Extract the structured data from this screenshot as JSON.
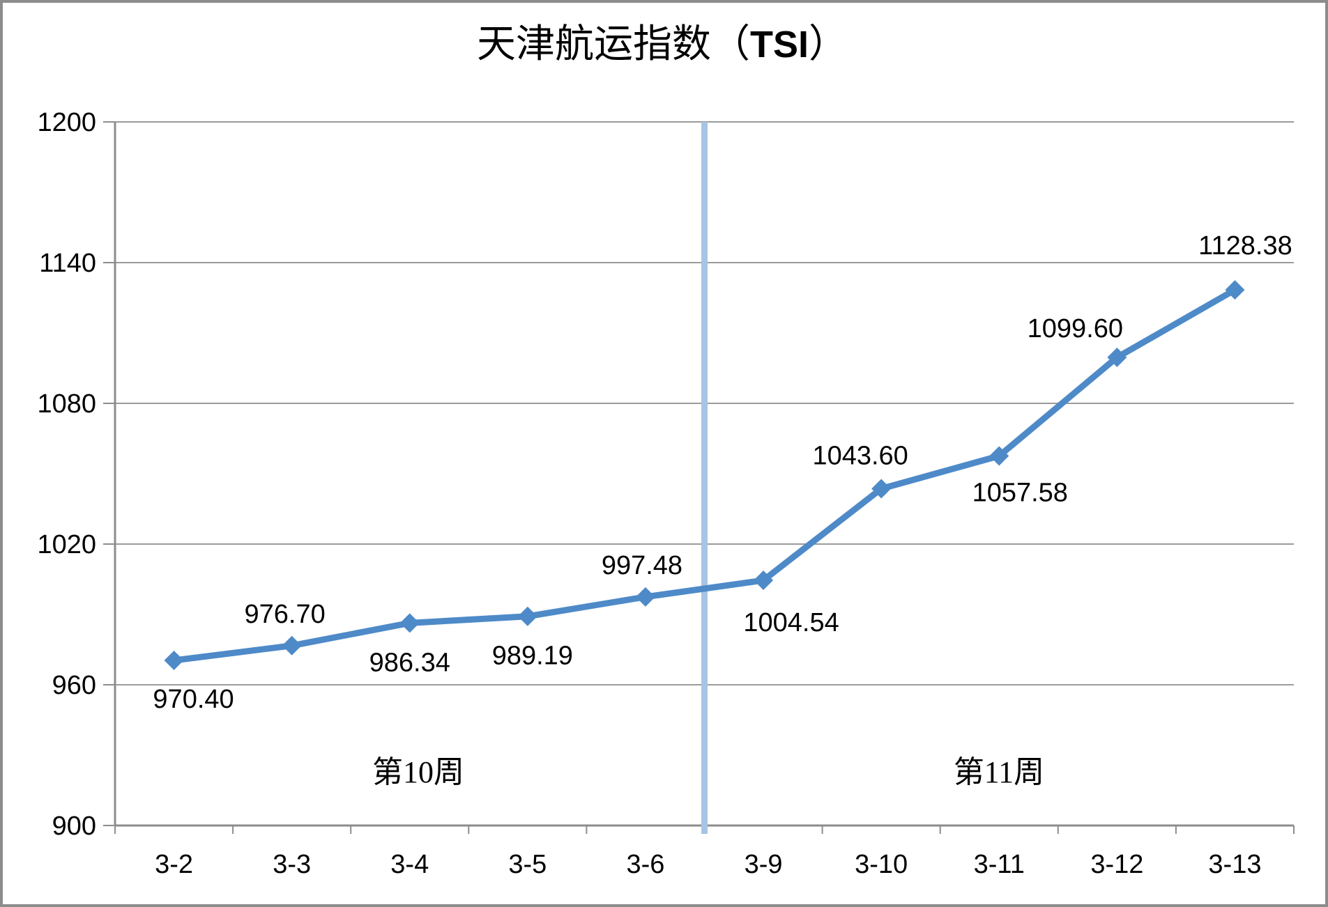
{
  "title": {
    "full": "天津航运指数（TSI）",
    "prefix": "天津航运指数（",
    "tsi": "TSI",
    "suffix": "）"
  },
  "chart_data": {
    "type": "line",
    "title": "天津航运指数（TSI）",
    "xlabel": "",
    "ylabel": "",
    "categories": [
      "3-2",
      "3-3",
      "3-4",
      "3-5",
      "3-6",
      "3-9",
      "3-10",
      "3-11",
      "3-12",
      "3-13"
    ],
    "series": [
      {
        "name": "TSI",
        "values": [
          970.4,
          976.7,
          986.34,
          989.19,
          997.48,
          1004.54,
          1043.6,
          1057.58,
          1099.6,
          1128.38
        ],
        "labels": [
          "970.40",
          "976.70",
          "986.34",
          "989.19",
          "997.48",
          "1004.54",
          "1043.60",
          "1057.58",
          "1099.60",
          "1128.38"
        ],
        "color": "#4E8AC8",
        "marker": "diamond"
      }
    ],
    "ylim": [
      900,
      1200
    ],
    "yticks": [
      900,
      960,
      1020,
      1080,
      1140,
      1200
    ],
    "ytick_labels": [
      "900",
      "960",
      "1020",
      "1080",
      "1140",
      "1200"
    ],
    "grid": true,
    "legend": "none",
    "divider": {
      "between": [
        "3-6",
        "3-9"
      ],
      "color": "#A7C4E4"
    },
    "annotations": [
      {
        "text": "第10周"
      },
      {
        "text": "第11周"
      }
    ]
  },
  "colors": {
    "background": "#FFFFFF",
    "border": "#8C8C8C",
    "axis": "#8C8C8C",
    "gridline": "#9B9B9B",
    "text": "#000000"
  }
}
